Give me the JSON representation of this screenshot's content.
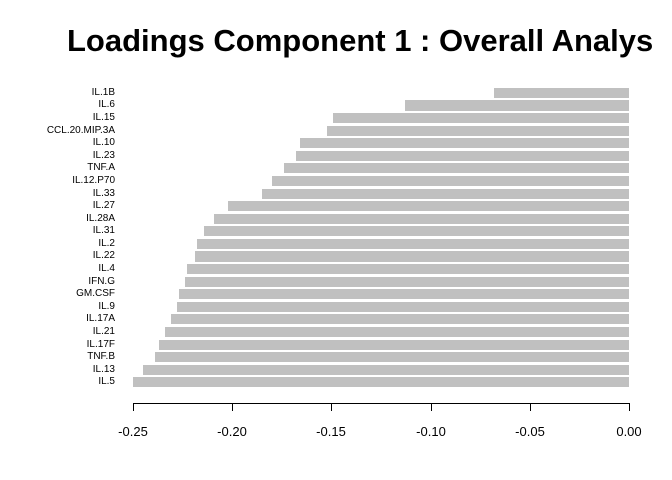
{
  "title": "Loadings Component 1 : Overall Analys",
  "colors": {
    "background": "#FFFFFF",
    "bar_fill": "#C0C0C0",
    "axis": "#000000",
    "text": "#000000"
  },
  "chart_data": {
    "type": "bar",
    "orientation": "horizontal",
    "title": "Loadings Component 1 : Overall Analys",
    "xlabel": "",
    "ylabel": "",
    "xlim": [
      -0.26,
      0.0
    ],
    "grid": false,
    "legend": false,
    "categories": [
      "IL.1B",
      "IL.6",
      "IL.15",
      "CCL.20.MIP.3A",
      "IL.10",
      "IL.23",
      "TNF.A",
      "IL.12.P70",
      "IL.33",
      "IL.27",
      "IL.28A",
      "IL.31",
      "IL.2",
      "IL.22",
      "IL.4",
      "IFN.G",
      "GM.CSF",
      "IL.9",
      "IL.17A",
      "IL.21",
      "IL.17F",
      "TNF.B",
      "IL.13",
      "IL.5"
    ],
    "values": [
      -0.068,
      -0.113,
      -0.149,
      -0.152,
      -0.166,
      -0.168,
      -0.174,
      -0.18,
      -0.185,
      -0.202,
      -0.209,
      -0.214,
      -0.218,
      -0.219,
      -0.223,
      -0.224,
      -0.227,
      -0.228,
      -0.231,
      -0.234,
      -0.237,
      -0.239,
      -0.245,
      -0.25
    ],
    "x_ticks": [
      -0.25,
      -0.2,
      -0.15,
      -0.1,
      -0.05,
      0.0
    ],
    "x_tick_labels": [
      "-0.25",
      "-0.20",
      "-0.15",
      "-0.10",
      "-0.05",
      "0.00"
    ]
  }
}
